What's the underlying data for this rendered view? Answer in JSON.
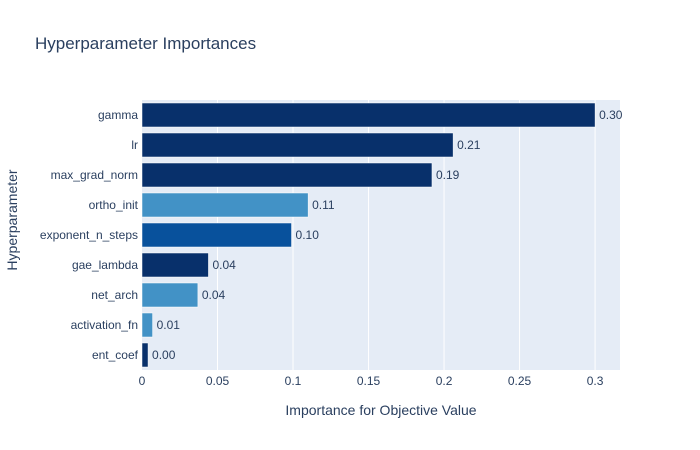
{
  "chart_data": {
    "type": "bar",
    "orientation": "horizontal",
    "title": "Hyperparameter Importances",
    "xlabel": "Importance for Objective Value",
    "ylabel": "Hyperparameter",
    "xlim": [
      0,
      0.3165
    ],
    "x_ticks": [
      0,
      0.05,
      0.1,
      0.15,
      0.2,
      0.25,
      0.3
    ],
    "x_tick_labels": [
      "0",
      "0.05",
      "0.1",
      "0.15",
      "0.2",
      "0.25",
      "0.3"
    ],
    "grid": true,
    "categories": [
      "gamma",
      "lr",
      "max_grad_norm",
      "ortho_init",
      "exponent_n_steps",
      "gae_lambda",
      "net_arch",
      "activation_fn",
      "ent_coef"
    ],
    "values": [
      0.3,
      0.206,
      0.192,
      0.11,
      0.099,
      0.044,
      0.037,
      0.007,
      0.004
    ],
    "value_labels": [
      "0.30",
      "0.21",
      "0.19",
      "0.11",
      "0.10",
      "0.04",
      "0.04",
      "0.01",
      "0.00"
    ],
    "bar_colors": [
      "#08306b",
      "#08306b",
      "#08306b",
      "#4292c6",
      "#08519c",
      "#08306b",
      "#4292c6",
      "#4292c6",
      "#08306b"
    ]
  },
  "colors": {
    "plot_background": "#e5ecf6",
    "grid": "#ffffff",
    "text": "#2a3f5f"
  }
}
